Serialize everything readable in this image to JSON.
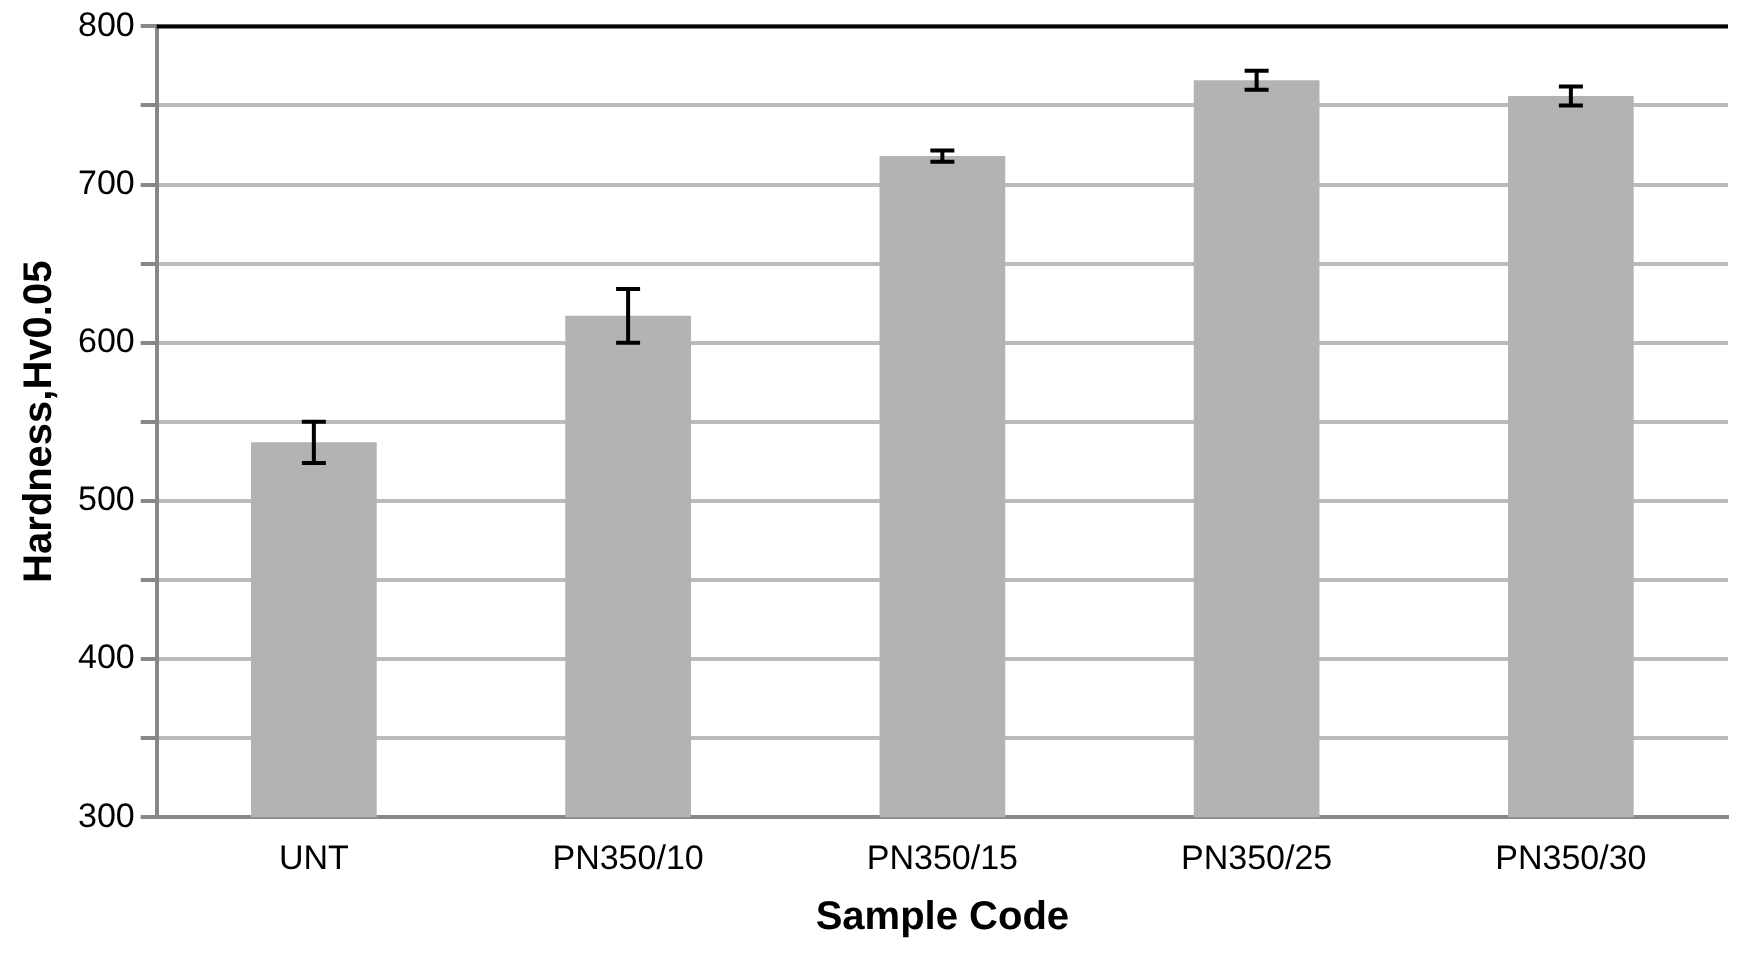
{
  "chart_data": {
    "type": "bar",
    "xlabel": "Sample Code",
    "ylabel": "Hardness,Hv0.05",
    "categories": [
      "UNT",
      "PN350/10",
      "PN350/15",
      "PN350/25",
      "PN350/30"
    ],
    "values": [
      537,
      617,
      718,
      766,
      756
    ],
    "errors": [
      13,
      17,
      3.5,
      6,
      6
    ],
    "color": "#b3b3b3",
    "ylim": [
      300,
      800
    ],
    "yticks": [
      300,
      {
        "value": 350,
        "label": null
      },
      400,
      {
        "value": 450,
        "label": null
      },
      500,
      {
        "value": 550,
        "label": null
      },
      600,
      {
        "value": 650,
        "label": null
      },
      700,
      {
        "value": 750,
        "label": null
      },
      800
    ],
    "grid": "y",
    "legend": false
  }
}
